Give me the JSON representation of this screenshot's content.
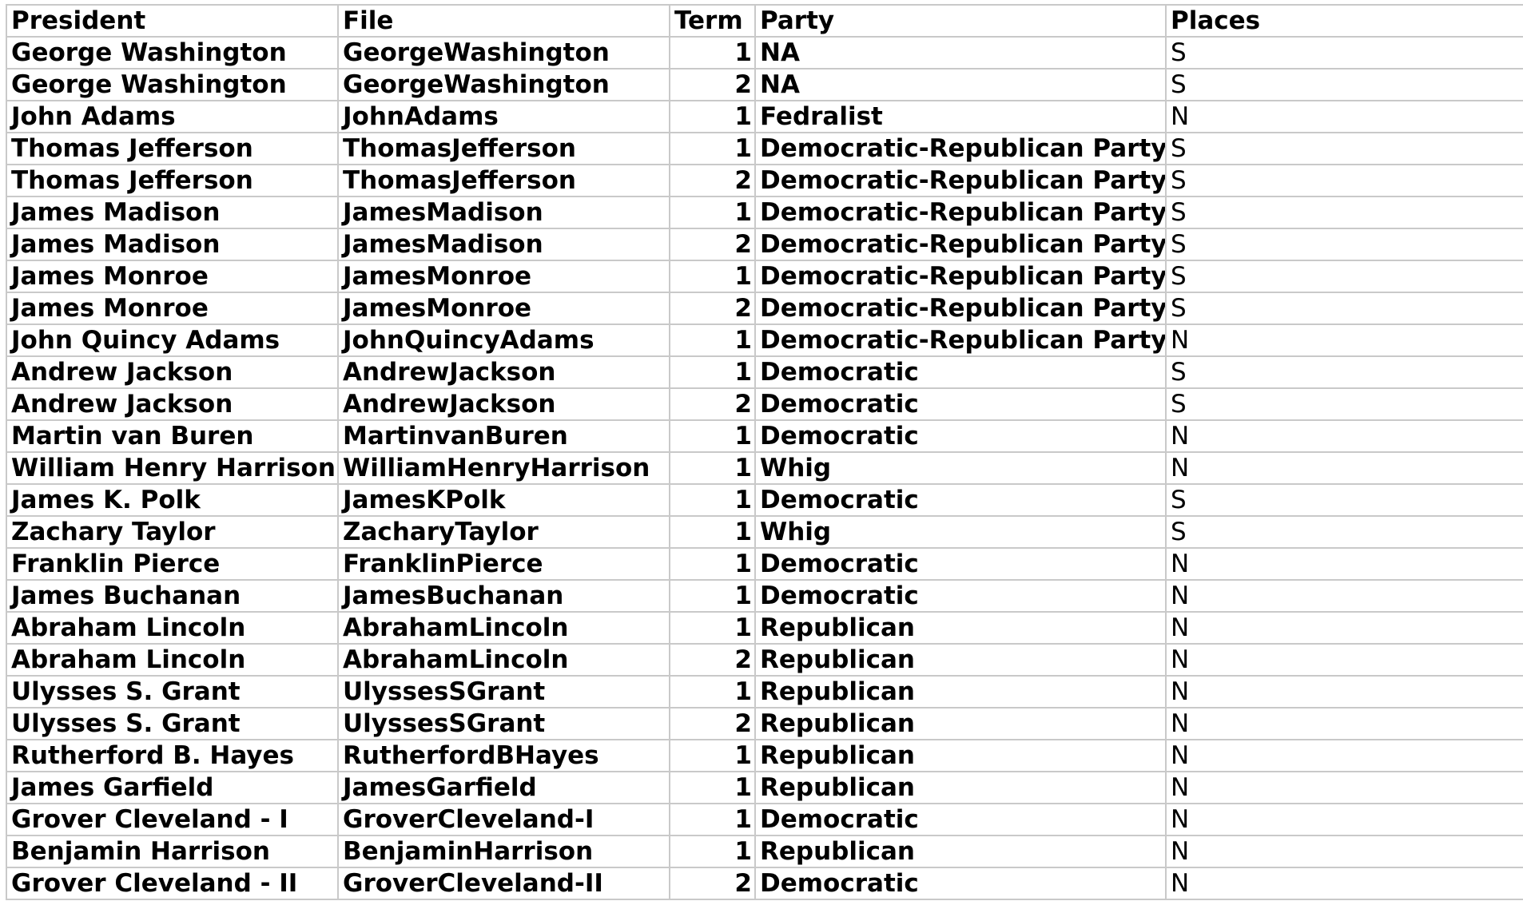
{
  "table": {
    "headers": {
      "president": "President",
      "file": "File",
      "term": "Term",
      "party": "Party",
      "places": "Places"
    },
    "rows": [
      {
        "president": "George Washington",
        "file": "GeorgeWashington",
        "term": "1",
        "party": "NA",
        "places": "S"
      },
      {
        "president": "George Washington",
        "file": "GeorgeWashington",
        "term": "2",
        "party": "NA",
        "places": "S"
      },
      {
        "president": "John Adams",
        "file": "JohnAdams",
        "term": "1",
        "party": "Fedralist",
        "places": "N"
      },
      {
        "president": "Thomas Jefferson",
        "file": "ThomasJefferson",
        "term": "1",
        "party": "Democratic-Republican Party",
        "places": "S"
      },
      {
        "president": "Thomas Jefferson",
        "file": "ThomasJefferson",
        "term": "2",
        "party": "Democratic-Republican Party",
        "places": "S"
      },
      {
        "president": "James Madison",
        "file": "JamesMadison",
        "term": "1",
        "party": "Democratic-Republican Party",
        "places": "S"
      },
      {
        "president": "James Madison",
        "file": "JamesMadison",
        "term": "2",
        "party": "Democratic-Republican Party",
        "places": "S"
      },
      {
        "president": "James Monroe",
        "file": "JamesMonroe",
        "term": "1",
        "party": "Democratic-Republican Party",
        "places": "S"
      },
      {
        "president": "James Monroe",
        "file": "JamesMonroe",
        "term": "2",
        "party": "Democratic-Republican Party",
        "places": "S"
      },
      {
        "president": "John Quincy Adams",
        "file": "JohnQuincyAdams",
        "term": "1",
        "party": "Democratic-Republican Party",
        "places": "N"
      },
      {
        "president": "Andrew Jackson",
        "file": "AndrewJackson",
        "term": "1",
        "party": "Democratic",
        "places": "S"
      },
      {
        "president": "Andrew Jackson",
        "file": "AndrewJackson",
        "term": "2",
        "party": "Democratic",
        "places": "S"
      },
      {
        "president": "Martin van Buren",
        "file": "MartinvanBuren",
        "term": "1",
        "party": "Democratic",
        "places": "N"
      },
      {
        "president": "William Henry Harrison",
        "file": "WilliamHenryHarrison",
        "term": "1",
        "party": "Whig",
        "places": "N"
      },
      {
        "president": "James K. Polk",
        "file": "JamesKPolk",
        "term": "1",
        "party": "Democratic",
        "places": "S"
      },
      {
        "president": "Zachary Taylor",
        "file": "ZacharyTaylor",
        "term": "1",
        "party": "Whig",
        "places": "S"
      },
      {
        "president": "Franklin Pierce",
        "file": "FranklinPierce",
        "term": "1",
        "party": "Democratic",
        "places": "N"
      },
      {
        "president": "James Buchanan",
        "file": "JamesBuchanan",
        "term": "1",
        "party": "Democratic",
        "places": "N"
      },
      {
        "president": "Abraham Lincoln",
        "file": "AbrahamLincoln",
        "term": "1",
        "party": "Republican",
        "places": "N"
      },
      {
        "president": "Abraham Lincoln",
        "file": "AbrahamLincoln",
        "term": "2",
        "party": "Republican",
        "places": "N"
      },
      {
        "president": "Ulysses S. Grant",
        "file": "UlyssesSGrant",
        "term": "1",
        "party": "Republican",
        "places": "N"
      },
      {
        "president": "Ulysses S. Grant",
        "file": "UlyssesSGrant",
        "term": "2",
        "party": "Republican",
        "places": "N"
      },
      {
        "president": "Rutherford B. Hayes",
        "file": "RutherfordBHayes",
        "term": "1",
        "party": "Republican",
        "places": "N"
      },
      {
        "president": "James Garfield",
        "file": "JamesGarfield",
        "term": "1",
        "party": "Republican",
        "places": "N"
      },
      {
        "president": "Grover Cleveland - I",
        "file": "GroverCleveland-I",
        "term": "1",
        "party": "Democratic",
        "places": "N"
      },
      {
        "president": "Benjamin Harrison",
        "file": "BenjaminHarrison",
        "term": "1",
        "party": "Republican",
        "places": "N"
      },
      {
        "president": "Grover Cleveland - II",
        "file": "GroverCleveland-II",
        "term": "2",
        "party": "Democratic",
        "places": "N"
      }
    ]
  },
  "colors": {
    "gridline": "#c9c9c9",
    "text": "#000000",
    "background": "#ffffff"
  }
}
